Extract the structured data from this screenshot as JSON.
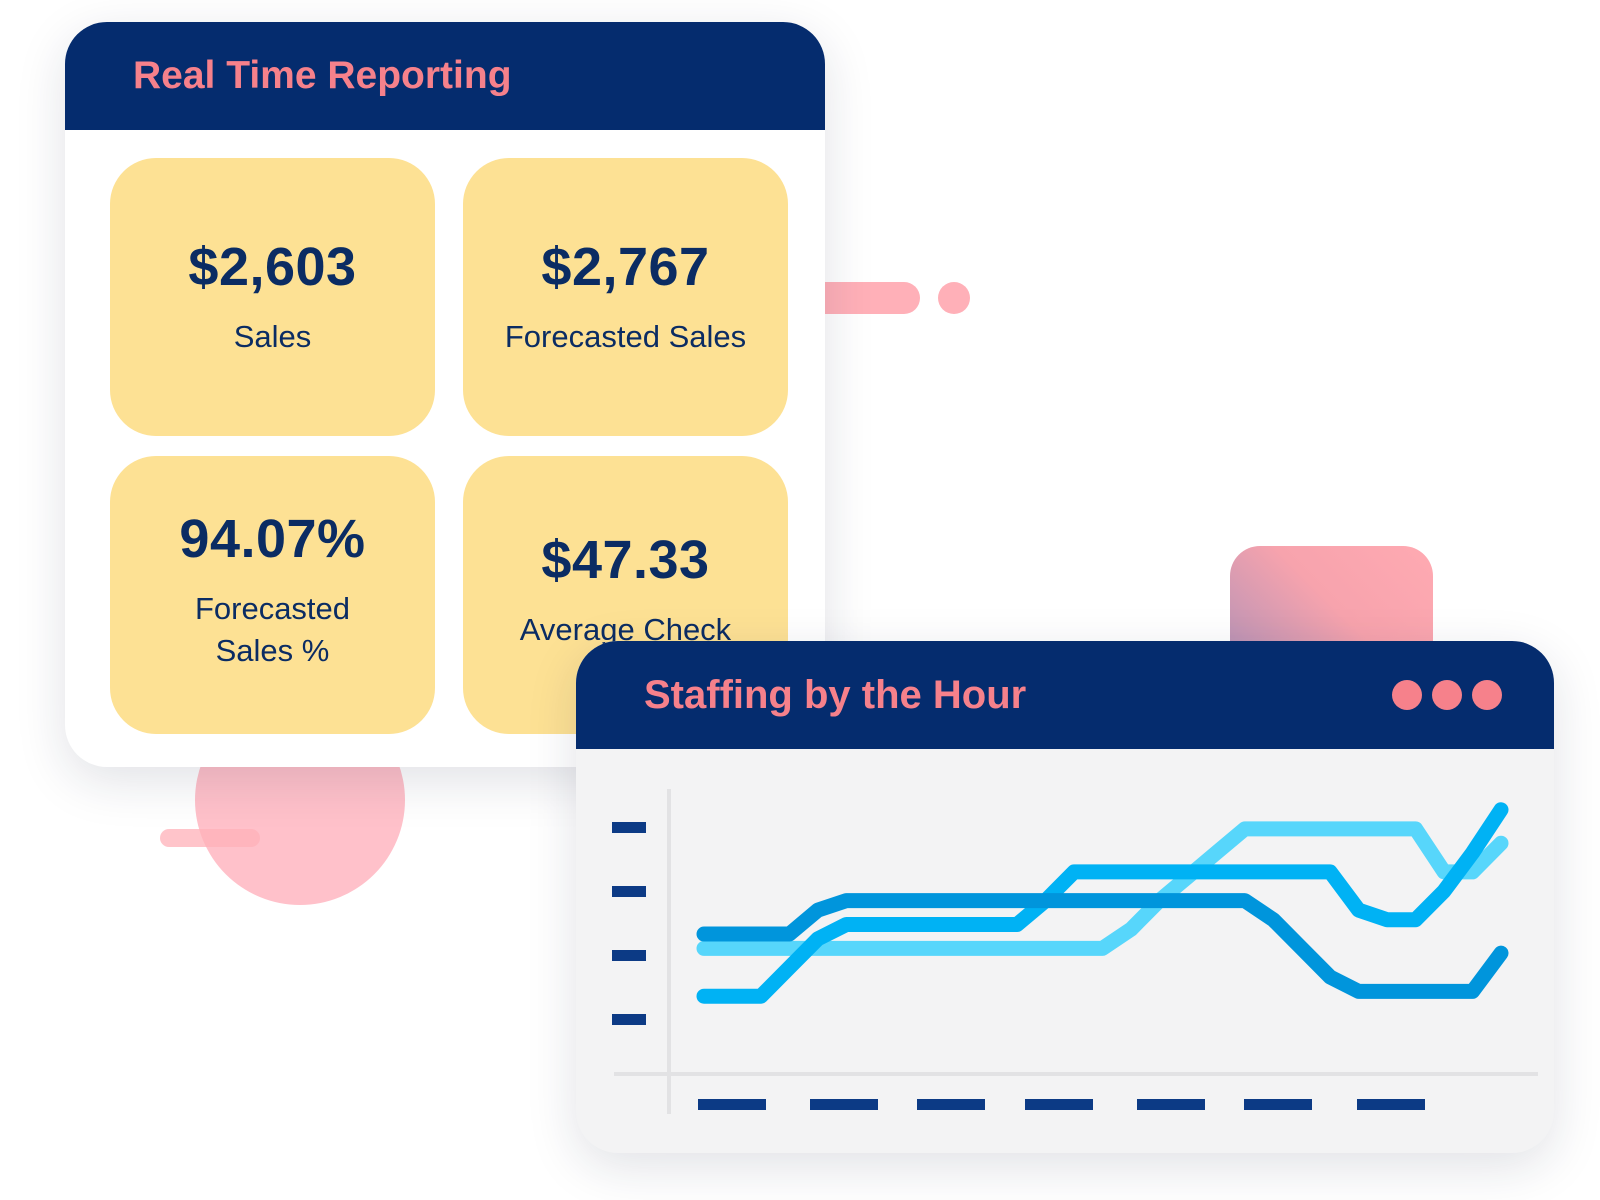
{
  "report": {
    "title": "Real Time Reporting",
    "tiles": [
      {
        "value": "$2,603",
        "label": "Sales"
      },
      {
        "value": "$2,767",
        "label": "Forecasted Sales"
      },
      {
        "value": "94.07%",
        "label": "Forecasted Sales %"
      },
      {
        "value": "$47.33",
        "label": "Average Check"
      }
    ]
  },
  "staffing": {
    "title": "Staffing by the Hour",
    "menu_icon": "more-dots-icon"
  },
  "colors": {
    "header_bg": "#052c6e",
    "header_text": "#f6818b",
    "tile_bg": "#fde194",
    "tile_text": "#0b2c63",
    "line_light": "#57d6fb",
    "line_mid": "#00b2f4",
    "line_dark": "#0095dc"
  },
  "chart_data": {
    "type": "line",
    "x_ticks": 7,
    "y_ticks": 4,
    "ylim": [
      0,
      5
    ],
    "x": [
      0,
      1,
      2,
      3,
      4,
      5,
      6,
      7,
      8,
      9,
      10,
      11,
      12,
      13,
      14,
      15,
      16,
      17,
      18,
      19,
      20,
      21,
      22,
      23,
      24,
      25,
      26,
      27,
      28
    ],
    "series": [
      {
        "color": "#57d6fb",
        "values": [
          2.0,
          2.0,
          2.0,
          2.0,
          2.0,
          2.0,
          2.0,
          2.0,
          2.0,
          2.0,
          2.0,
          2.0,
          2.0,
          2.0,
          2.0,
          2.4,
          3.0,
          3.5,
          4.0,
          4.5,
          4.5,
          4.5,
          4.5,
          4.5,
          4.5,
          4.5,
          3.6,
          3.6,
          4.2
        ]
      },
      {
        "color": "#00b2f4",
        "values": [
          1.0,
          1.0,
          1.0,
          1.6,
          2.2,
          2.5,
          2.5,
          2.5,
          2.5,
          2.5,
          2.5,
          2.5,
          3.0,
          3.6,
          3.6,
          3.6,
          3.6,
          3.6,
          3.6,
          3.6,
          3.6,
          3.6,
          3.6,
          2.8,
          2.6,
          2.6,
          3.2,
          4.0,
          4.9
        ]
      },
      {
        "color": "#0095dc",
        "values": [
          2.3,
          2.3,
          2.3,
          2.3,
          2.8,
          3.0,
          3.0,
          3.0,
          3.0,
          3.0,
          3.0,
          3.0,
          3.0,
          3.0,
          3.0,
          3.0,
          3.0,
          3.0,
          3.0,
          3.0,
          2.6,
          2.0,
          1.4,
          1.1,
          1.1,
          1.1,
          1.1,
          1.1,
          1.9
        ]
      }
    ]
  }
}
